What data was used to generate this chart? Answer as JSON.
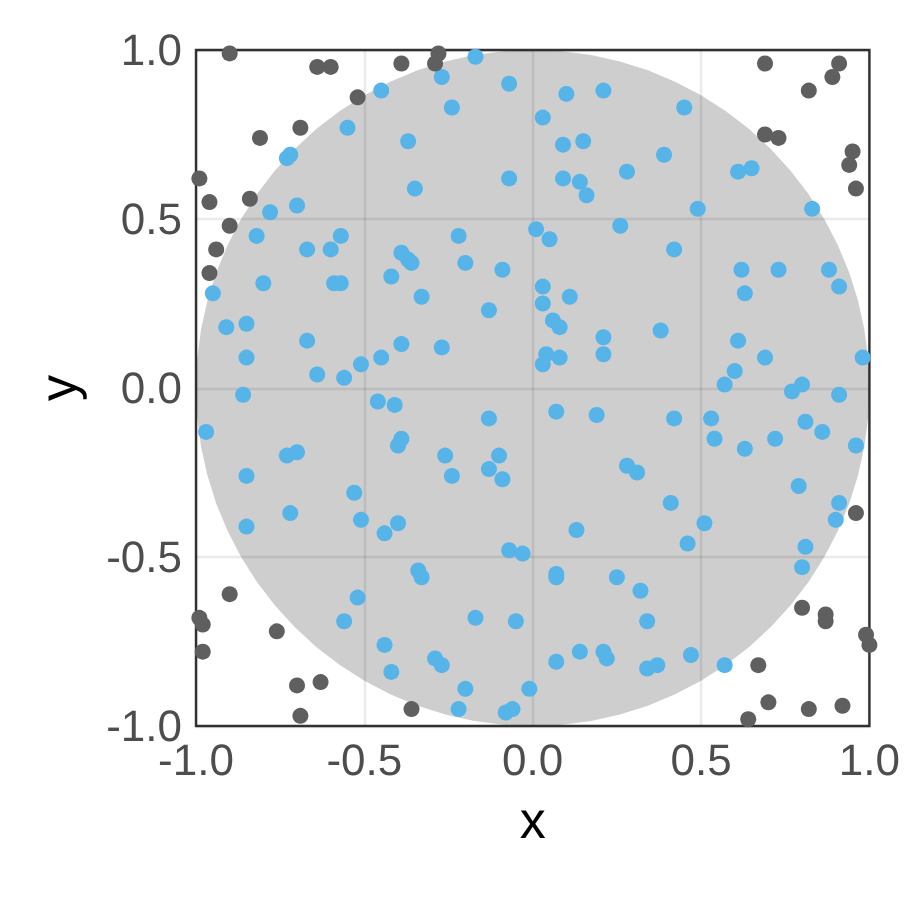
{
  "chart_data": {
    "type": "scatter",
    "xlabel": "x",
    "ylabel": "y",
    "xlim": [
      -1,
      1
    ],
    "ylim": [
      -1,
      1
    ],
    "xticks": [
      {
        "value": -1,
        "label": "-1.0"
      },
      {
        "value": -0.5,
        "label": "-0.5"
      },
      {
        "value": 0,
        "label": "0.0"
      },
      {
        "value": 0.5,
        "label": "0.5"
      },
      {
        "value": 1,
        "label": "1.0"
      }
    ],
    "yticks": [
      {
        "value": -1,
        "label": "-1.0"
      },
      {
        "value": -0.5,
        "label": "-0.5"
      },
      {
        "value": 0,
        "label": "0.0"
      },
      {
        "value": 0.5,
        "label": "0.5"
      },
      {
        "value": 1,
        "label": "1.0"
      }
    ],
    "grid": true,
    "series": [
      {
        "color": "#56b4e9",
        "marker": "circle",
        "x": [
          -0.17,
          -0.45,
          -0.27,
          -0.07,
          -0.24,
          0.1,
          0.21,
          0.45,
          0.03,
          -0.55,
          -0.37,
          0.09,
          0.15,
          -0.73,
          -0.72,
          0.39,
          0.28,
          0.61,
          0.65,
          -0.07,
          0.09,
          0.14,
          0.16,
          -0.35,
          -0.7,
          -0.78,
          0.49,
          0.83,
          0.26,
          0.01,
          0.05,
          -0.82,
          -0.57,
          -0.22,
          -0.67,
          -0.6,
          0.42,
          -0.39,
          -0.37,
          -0.36,
          -0.2,
          -0.09,
          0.62,
          0.73,
          0.88,
          -0.42,
          -0.59,
          -0.57,
          -0.8,
          0.03,
          0.11,
          0.63,
          0.91,
          -0.95,
          -0.33,
          0.03,
          -0.13,
          -0.91,
          -0.85,
          0.06,
          0.08,
          0.38,
          0.21,
          -0.67,
          -0.39,
          -0.27,
          0.61,
          -0.85,
          -0.51,
          -0.45,
          0.04,
          0.03,
          0.08,
          0.21,
          0.69,
          0.98,
          -0.64,
          -0.56,
          0.6,
          0.57,
          0.77,
          0.8,
          -0.86,
          0.91,
          -0.46,
          -0.41,
          -0.97,
          -0.13,
          0.07,
          0.19,
          0.42,
          0.53,
          0.54,
          0.63,
          0.72,
          0.81,
          0.86,
          0.96,
          -0.4,
          -0.39,
          -0.73,
          -0.7,
          -0.26,
          -0.24,
          -0.1,
          -0.13,
          -0.09,
          -0.85,
          -0.53,
          0.28,
          0.31,
          0.79,
          0.41,
          0.91,
          0.9,
          0.51,
          -0.72,
          -0.51,
          -0.4,
          -0.44,
          -0.85,
          0.13,
          0.46,
          0.81,
          0.8,
          -0.07,
          -0.03,
          -0.34,
          -0.33,
          0.07,
          0.07,
          0.25,
          0.32,
          -0.52,
          -0.56,
          -0.17,
          -0.05,
          0.34,
          -0.44,
          -0.42,
          -0.29,
          -0.27,
          -0.2,
          -0.22,
          -0.08,
          -0.06,
          -0.01,
          0.07,
          0.14,
          0.21,
          0.22,
          0.34,
          0.37,
          0.47,
          0.57
        ],
        "values": [
          0.98,
          0.88,
          0.92,
          0.9,
          0.83,
          0.87,
          0.88,
          0.83,
          0.8,
          0.77,
          0.73,
          0.72,
          0.73,
          0.68,
          0.69,
          0.69,
          0.64,
          0.64,
          0.65,
          0.62,
          0.62,
          0.61,
          0.57,
          0.59,
          0.54,
          0.52,
          0.53,
          0.53,
          0.48,
          0.47,
          0.44,
          0.45,
          0.45,
          0.45,
          0.41,
          0.41,
          0.41,
          0.4,
          0.38,
          0.37,
          0.37,
          0.35,
          0.35,
          0.35,
          0.35,
          0.33,
          0.31,
          0.31,
          0.31,
          0.3,
          0.27,
          0.28,
          0.3,
          0.28,
          0.27,
          0.25,
          0.23,
          0.18,
          0.19,
          0.2,
          0.18,
          0.17,
          0.15,
          0.14,
          0.13,
          0.12,
          0.14,
          0.09,
          0.07,
          0.09,
          0.1,
          0.07,
          0.09,
          0.1,
          0.09,
          0.09,
          0.04,
          0.03,
          0.05,
          0.01,
          -0.01,
          0.01,
          -0.02,
          -0.02,
          -0.04,
          -0.05,
          -0.13,
          -0.09,
          -0.07,
          -0.08,
          -0.09,
          -0.09,
          -0.15,
          -0.18,
          -0.15,
          -0.1,
          -0.13,
          -0.17,
          -0.17,
          -0.15,
          -0.2,
          -0.19,
          -0.2,
          -0.26,
          -0.2,
          -0.24,
          -0.27,
          -0.26,
          -0.31,
          -0.23,
          -0.25,
          -0.29,
          -0.34,
          -0.34,
          -0.39,
          -0.4,
          -0.37,
          -0.39,
          -0.4,
          -0.43,
          -0.41,
          -0.42,
          -0.46,
          -0.47,
          -0.53,
          -0.48,
          -0.49,
          -0.54,
          -0.56,
          -0.55,
          -0.56,
          -0.56,
          -0.6,
          -0.62,
          -0.69,
          -0.68,
          -0.69,
          -0.69,
          -0.76,
          -0.84,
          -0.8,
          -0.82,
          -0.89,
          -0.95,
          -0.96,
          -0.95,
          -0.89,
          -0.81,
          -0.78,
          -0.78,
          -0.8,
          -0.83,
          -0.82,
          -0.79,
          -0.82
        ]
      },
      {
        "color": "#5f5f5f",
        "marker": "circle",
        "x": [
          -0.9,
          -0.64,
          -0.6,
          -0.39,
          -0.29,
          -0.28,
          -0.52,
          -0.69,
          -0.81,
          -0.99,
          -0.96,
          -0.84,
          -0.9,
          -0.94,
          -0.96,
          0.69,
          0.91,
          0.89,
          0.82,
          0.69,
          0.73,
          0.95,
          0.94,
          0.96,
          -0.99,
          -0.98,
          -0.98,
          -0.9,
          -0.76,
          -0.7,
          -0.63,
          -0.69,
          -0.36,
          0.96,
          0.8,
          0.87,
          0.87,
          0.99,
          1.0,
          0.67,
          0.7,
          0.82,
          0.92,
          0.64
        ],
        "values": [
          0.99,
          0.95,
          0.95,
          0.96,
          0.96,
          0.99,
          0.86,
          0.77,
          0.74,
          0.62,
          0.55,
          0.56,
          0.48,
          0.41,
          0.34,
          0.96,
          0.96,
          0.92,
          0.88,
          0.75,
          0.74,
          0.7,
          0.66,
          0.59,
          -0.68,
          -0.7,
          -0.78,
          -0.61,
          -0.72,
          -0.88,
          -0.87,
          -0.97,
          -0.95,
          -0.37,
          -0.65,
          -0.67,
          -0.69,
          -0.73,
          -0.76,
          -0.82,
          -0.93,
          -0.95,
          -0.94,
          -0.98
        ]
      },
      {
        "type": "area",
        "color": "#cecece",
        "x": [
          1,
          0.996,
          0.985,
          0.966,
          0.94,
          0.906,
          0.866,
          0.819,
          0.766,
          0.707,
          0.643,
          0.574,
          0.5,
          0.423,
          0.342,
          0.259,
          0.174,
          0.087,
          0,
          -0.087,
          -0.174,
          -0.259,
          -0.342,
          -0.423,
          -0.5,
          -0.574,
          -0.643,
          -0.707,
          -0.766,
          -0.819,
          -0.866,
          -0.906,
          -0.94,
          -0.966,
          -0.985,
          -0.996,
          -1,
          -0.996,
          -0.985,
          -0.966,
          -0.94,
          -0.906,
          -0.866,
          -0.819,
          -0.766,
          -0.707,
          -0.643,
          -0.574,
          -0.5,
          -0.423,
          -0.342,
          -0.259,
          -0.174,
          -0.087,
          0,
          0.087,
          0.174,
          0.259,
          0.342,
          0.423,
          0.5,
          0.574,
          0.643,
          0.707,
          0.766,
          0.819,
          0.866,
          0.906,
          0.94,
          0.966,
          0.985,
          0.996
        ],
        "values": [
          0,
          0.087,
          0.174,
          0.259,
          0.342,
          0.423,
          0.5,
          0.574,
          0.643,
          0.707,
          0.766,
          0.819,
          0.866,
          0.906,
          0.94,
          0.966,
          0.985,
          0.996,
          1,
          0.996,
          0.985,
          0.966,
          0.94,
          0.906,
          0.866,
          0.819,
          0.766,
          0.707,
          0.643,
          0.574,
          0.5,
          0.423,
          0.342,
          0.259,
          0.174,
          0.087,
          0,
          -0.087,
          -0.174,
          -0.259,
          -0.342,
          -0.423,
          -0.5,
          -0.574,
          -0.643,
          -0.707,
          -0.766,
          -0.819,
          -0.866,
          -0.906,
          -0.94,
          -0.966,
          -0.985,
          -0.996,
          -1,
          -0.996,
          -0.985,
          -0.966,
          -0.94,
          -0.906,
          -0.866,
          -0.819,
          -0.766,
          -0.707,
          -0.643,
          -0.574,
          -0.5,
          -0.423,
          -0.342,
          -0.259,
          -0.174,
          -0.087
        ]
      }
    ]
  }
}
